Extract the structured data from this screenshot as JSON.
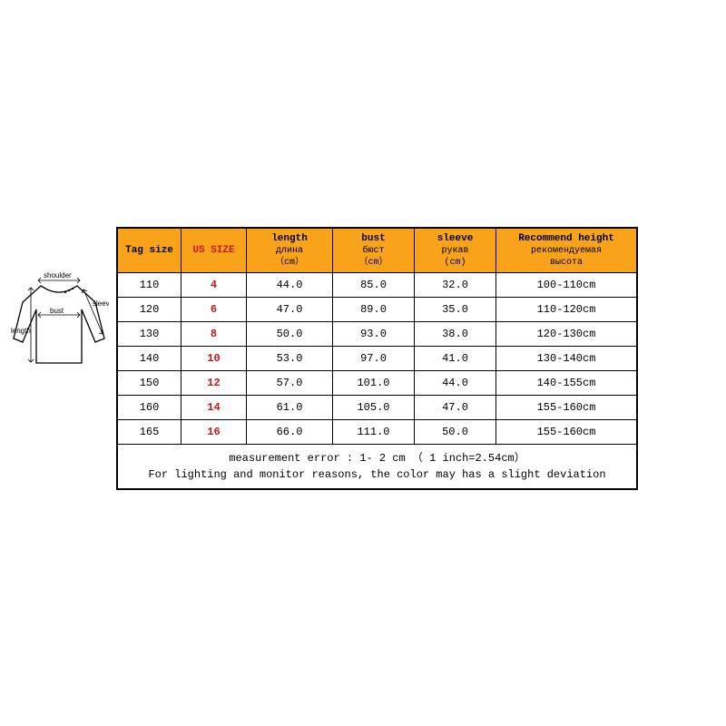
{
  "diagram": {
    "labels": {
      "shoulder": "shoulder",
      "sleeve": "sleeve",
      "bust": "bust",
      "length": "length"
    }
  },
  "size_table": {
    "header_bg": "#f8a31a",
    "accent_color": "#c4181f",
    "border_color": "#000000",
    "columns": {
      "tag": {
        "label": "Tag size"
      },
      "us": {
        "label": "US SIZE"
      },
      "length": {
        "label_top": "length",
        "label_mid": "длина",
        "label_bot": "（cm）"
      },
      "bust": {
        "label_top": "bust",
        "label_mid": "бюст",
        "label_bot": "（cm）"
      },
      "sleeve": {
        "label_top": "sleeve",
        "label_mid": "рукав",
        "label_bot": "(cm)"
      },
      "recommend": {
        "label_top": "Recommend height",
        "label_mid": "рекомендуемая",
        "label_bot": "высота"
      }
    },
    "rows": [
      {
        "tag": "110",
        "us": "4",
        "length": "44.0",
        "bust": "85.0",
        "sleeve": "32.0",
        "recommend": "100-110cm"
      },
      {
        "tag": "120",
        "us": "6",
        "length": "47.0",
        "bust": "89.0",
        "sleeve": "35.0",
        "recommend": "110-120cm"
      },
      {
        "tag": "130",
        "us": "8",
        "length": "50.0",
        "bust": "93.0",
        "sleeve": "38.0",
        "recommend": "120-130cm"
      },
      {
        "tag": "140",
        "us": "10",
        "length": "53.0",
        "bust": "97.0",
        "sleeve": "41.0",
        "recommend": "130-140cm"
      },
      {
        "tag": "150",
        "us": "12",
        "length": "57.0",
        "bust": "101.0",
        "sleeve": "44.0",
        "recommend": "140-155cm"
      },
      {
        "tag": "160",
        "us": "14",
        "length": "61.0",
        "bust": "105.0",
        "sleeve": "47.0",
        "recommend": "155-160cm"
      },
      {
        "tag": "165",
        "us": "16",
        "length": "66.0",
        "bust": "111.0",
        "sleeve": "50.0",
        "recommend": "155-160cm"
      }
    ],
    "footer_line1": "measurement error : 1- 2 cm （ 1 inch=2.54cm）",
    "footer_line2": "For lighting and monitor reasons, the color may has a slight deviation"
  }
}
